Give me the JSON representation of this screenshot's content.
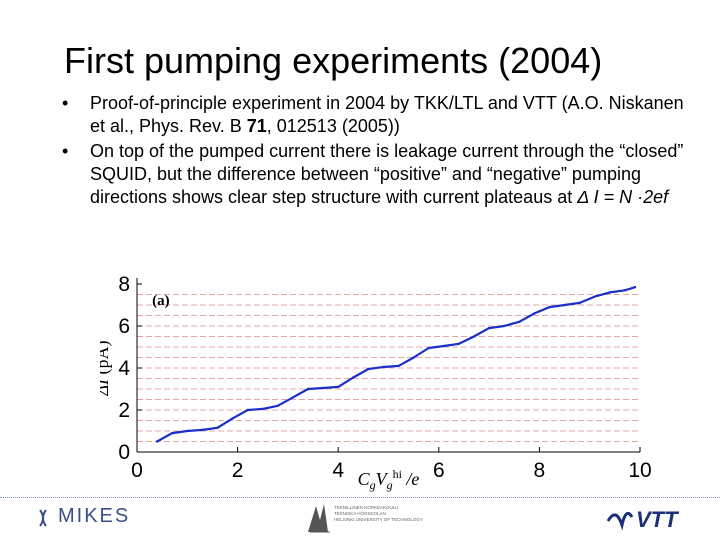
{
  "slide": {
    "title": "First pumping experiments (2004)",
    "bullet_char": "•",
    "bullets": [
      {
        "text_before": "Proof-of-principle experiment in 2004 by TKK/LTL and VTT (A.O. Niskanen et al., Phys. Rev. B ",
        "bold": "71",
        "text_after": ", 012513 (2005))"
      },
      {
        "text": "On top of the pumped current there is leakage current through the “closed” SQUID, but the difference between “positive” and “negative” pumping directions shows clear step structure with current plateaus at ",
        "formula": "Δ I = N ·2ef"
      }
    ]
  },
  "chart_data": {
    "type": "line",
    "panel_label": "(a)",
    "xlabel": "CgVg^hi /e",
    "ylabel": "ΔI (pA)",
    "xlim": [
      0,
      10
    ],
    "ylim": [
      0,
      8
    ],
    "xticks": [
      0,
      2,
      4,
      6,
      8,
      10
    ],
    "yticks": [
      0,
      2,
      4,
      6,
      8
    ],
    "plateau_lines": [
      0.5,
      1.0,
      1.5,
      2.0,
      2.5,
      3.0,
      3.5,
      4.0,
      4.5,
      5.0,
      5.5,
      6.0,
      6.5,
      7.0,
      7.5
    ],
    "series": [
      {
        "color": "#1a2fc8",
        "x": [
          0.4,
          0.7,
          1.0,
          1.3,
          1.6,
          1.9,
          2.2,
          2.5,
          2.8,
          3.1,
          3.4,
          3.7,
          4.0,
          4.3,
          4.6,
          4.9,
          5.2,
          5.5,
          5.8,
          6.1,
          6.4,
          6.7,
          7.0,
          7.3,
          7.6,
          7.9,
          8.2,
          8.5,
          8.8,
          9.1,
          9.4,
          9.7,
          9.9
        ],
        "y": [
          0.5,
          0.9,
          1.0,
          1.05,
          1.15,
          1.6,
          2.0,
          2.05,
          2.2,
          2.6,
          3.0,
          3.05,
          3.1,
          3.55,
          3.95,
          4.05,
          4.1,
          4.5,
          4.95,
          5.05,
          5.15,
          5.5,
          5.9,
          6.0,
          6.2,
          6.6,
          6.9,
          7.0,
          7.1,
          7.4,
          7.6,
          7.7,
          7.85
        ]
      }
    ]
  },
  "footer": {
    "logo_left": "MIKES",
    "logo_center_lines": [
      "TEKNILLINEN KORKEAKOULU",
      "TEKNISKA HÖGSKOLAN",
      "HELSINKI UNIVERSITY OF TECHNOLOGY"
    ],
    "logo_right": "VTT"
  }
}
